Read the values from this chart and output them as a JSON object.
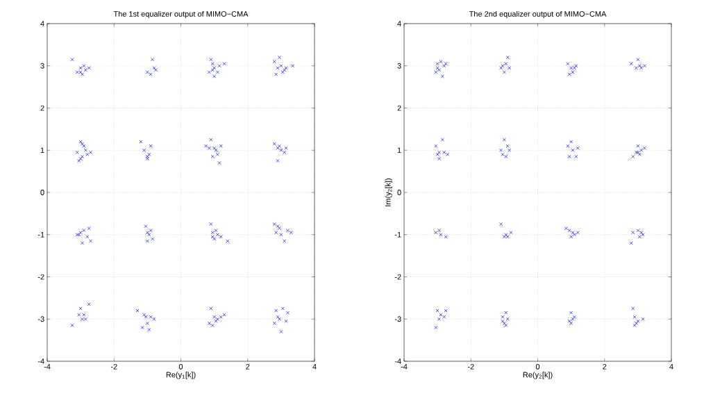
{
  "chart_data": [
    {
      "type": "scatter",
      "title": "The 1st equalizer output of MIMO−CMA",
      "xlabel": "Re(y$_{1}$[k])",
      "xlim": [
        -4,
        4
      ],
      "ylim": [
        -4,
        4
      ],
      "xticks": [
        -4,
        -2,
        0,
        2,
        4
      ],
      "yticks": [
        -4,
        -3,
        -2,
        -1,
        0,
        1,
        2,
        3,
        4
      ],
      "grid": true,
      "marker": "cross",
      "color": "#0000ff",
      "x": [
        -3.25,
        -3.1,
        -3.0,
        -2.95,
        -2.9,
        -2.85,
        -2.75,
        -3.0,
        -1.0,
        -0.9,
        -0.85,
        -0.8,
        -0.75,
        0.85,
        0.9,
        0.95,
        1.0,
        1.0,
        1.1,
        1.15,
        1.3,
        0.95,
        2.8,
        2.85,
        2.95,
        3.0,
        3.05,
        3.1,
        3.15,
        3.35,
        2.9,
        -3.1,
        -3.05,
        -3.0,
        -2.95,
        -2.9,
        -2.85,
        -2.8,
        -2.7,
        -3.0,
        -2.95,
        -1.2,
        -1.1,
        -1.0,
        -0.95,
        -0.9,
        -1.0,
        0.75,
        0.9,
        0.95,
        1.0,
        1.05,
        1.1,
        1.15,
        1.2,
        0.85,
        2.8,
        2.9,
        2.95,
        3.0,
        3.1,
        3.15,
        2.9,
        -3.1,
        -3.0,
        -2.95,
        -2.9,
        -2.8,
        -2.75,
        -2.7,
        -3.05,
        -1.05,
        -1.0,
        -0.95,
        -0.9,
        -0.85,
        -1.0,
        0.9,
        0.95,
        1.0,
        1.05,
        1.1,
        1.2,
        1.4,
        0.95,
        2.8,
        2.85,
        2.95,
        3.0,
        3.1,
        3.2,
        3.3,
        2.9,
        -3.25,
        -3.0,
        -2.95,
        -2.9,
        -2.85,
        -2.75,
        -3.05,
        -1.3,
        -1.15,
        -1.05,
        -1.0,
        -0.95,
        -0.9,
        -0.8,
        -1.1,
        0.85,
        0.9,
        0.95,
        1.0,
        1.1,
        1.2,
        1.3,
        1.05,
        2.8,
        2.85,
        2.95,
        3.0,
        3.05,
        3.15,
        3.2,
        2.9
      ],
      "values": [
        3.15,
        2.85,
        2.95,
        2.8,
        3.0,
        2.9,
        2.95,
        2.85,
        2.85,
        2.8,
        3.15,
        2.95,
        2.9,
        2.85,
        3.15,
        3.05,
        2.95,
        2.75,
        2.85,
        3.0,
        3.05,
        2.9,
        3.1,
        2.8,
        3.2,
        3.0,
        2.85,
        2.9,
        2.95,
        3.0,
        2.95,
        0.95,
        0.75,
        1.2,
        0.85,
        1.1,
        1.0,
        0.9,
        0.95,
        0.8,
        1.15,
        1.2,
        1.0,
        0.85,
        0.9,
        1.1,
        0.8,
        1.1,
        1.25,
        0.85,
        1.05,
        1.0,
        0.9,
        0.7,
        1.1,
        1.05,
        1.15,
        0.75,
        1.1,
        1.0,
        0.95,
        1.05,
        1.05,
        -1.0,
        -0.95,
        -1.2,
        -0.9,
        -1.05,
        -0.85,
        -1.15,
        -1.0,
        -0.8,
        -1.15,
        -1.0,
        -0.9,
        -1.1,
        -0.95,
        -0.75,
        -0.95,
        -1.1,
        -0.9,
        -1.0,
        -1.05,
        -1.15,
        -1.05,
        -0.75,
        -0.95,
        -0.85,
        -1.0,
        -1.15,
        -0.9,
        -0.95,
        -0.8,
        -3.15,
        -2.75,
        -3.0,
        -2.9,
        -3.0,
        -2.65,
        -2.9,
        -2.8,
        -3.2,
        -2.95,
        -3.1,
        -3.25,
        -2.95,
        -3.0,
        -2.9,
        -3.1,
        -2.75,
        -3.15,
        -2.95,
        -3.0,
        -2.95,
        -2.9,
        -3.05,
        -3.1,
        -2.8,
        -3.0,
        -3.3,
        -2.75,
        -3.05,
        -2.85,
        -2.95
      ]
    },
    {
      "type": "scatter",
      "title": "The 2nd equalizer output of MIMO−CMA",
      "xlabel": "Re(y$_{2}$[k])",
      "ylabel": "Im(y$_{2}$[k])",
      "xlim": [
        -4,
        4
      ],
      "ylim": [
        -4,
        4
      ],
      "xticks": [
        -4,
        -2,
        0,
        2,
        4
      ],
      "yticks": [
        -4,
        -3,
        -2,
        -1,
        0,
        1,
        2,
        3,
        4
      ],
      "grid": true,
      "marker": "cross",
      "color": "#0000ff",
      "x": [
        -3.05,
        -3.0,
        -2.95,
        -2.9,
        -2.85,
        -2.8,
        -2.75,
        -3.0,
        -1.1,
        -1.0,
        -0.95,
        -0.9,
        -0.85,
        -1.05,
        0.9,
        0.95,
        1.0,
        1.05,
        1.1,
        1.15,
        2.8,
        2.95,
        3.0,
        3.05,
        3.1,
        3.2,
        -3.05,
        -3.0,
        -2.95,
        -2.85,
        -2.8,
        -2.7,
        -2.95,
        -1.1,
        -1.0,
        -0.95,
        -0.9,
        -0.85,
        -1.05,
        0.9,
        0.95,
        1.0,
        1.05,
        1.15,
        1.2,
        2.85,
        2.95,
        3.0,
        3.05,
        3.1,
        3.2,
        3.0,
        -3.05,
        -2.95,
        -2.9,
        -2.75,
        -1.1,
        -1.0,
        -0.95,
        -0.9,
        -0.8,
        0.85,
        0.95,
        1.0,
        1.05,
        1.1,
        1.2,
        2.8,
        2.85,
        3.0,
        3.05,
        3.1,
        3.15,
        -3.05,
        -3.0,
        -2.95,
        -2.9,
        -2.8,
        -2.75,
        -1.05,
        -1.0,
        -0.95,
        -0.9,
        -0.95,
        -1.05,
        0.95,
        1.0,
        1.05,
        1.1,
        1.0,
        2.85,
        2.9,
        2.95,
        3.0,
        3.15,
        2.9
      ],
      "values": [
        2.85,
        3.05,
        2.9,
        3.1,
        2.75,
        3.0,
        3.05,
        2.95,
        2.95,
        2.85,
        3.05,
        3.2,
        2.95,
        3.0,
        3.05,
        2.8,
        2.95,
        2.85,
        2.95,
        3.0,
        3.05,
        2.95,
        3.15,
        3.0,
        2.95,
        3.0,
        1.1,
        0.9,
        0.95,
        1.25,
        0.95,
        0.9,
        0.8,
        1.0,
        1.25,
        0.85,
        1.1,
        1.0,
        0.9,
        1.1,
        0.85,
        1.2,
        1.0,
        0.85,
        1.05,
        0.85,
        0.95,
        1.1,
        0.9,
        1.0,
        1.05,
        0.95,
        -0.95,
        -0.9,
        -1.0,
        -1.05,
        -0.75,
        -1.05,
        -1.0,
        -1.05,
        -0.95,
        -0.85,
        -0.9,
        -1.05,
        -0.95,
        -1.0,
        -0.95,
        -1.2,
        -0.95,
        -0.9,
        -1.05,
        -0.95,
        -1.0,
        -3.2,
        -2.8,
        -3.0,
        -2.9,
        -2.95,
        -2.8,
        -2.95,
        -3.1,
        -2.85,
        -3.0,
        -3.15,
        -3.05,
        -3.05,
        -2.85,
        -3.0,
        -2.95,
        -3.1,
        -2.75,
        -2.95,
        -3.1,
        -3.05,
        -3.0,
        -3.15
      ]
    }
  ]
}
